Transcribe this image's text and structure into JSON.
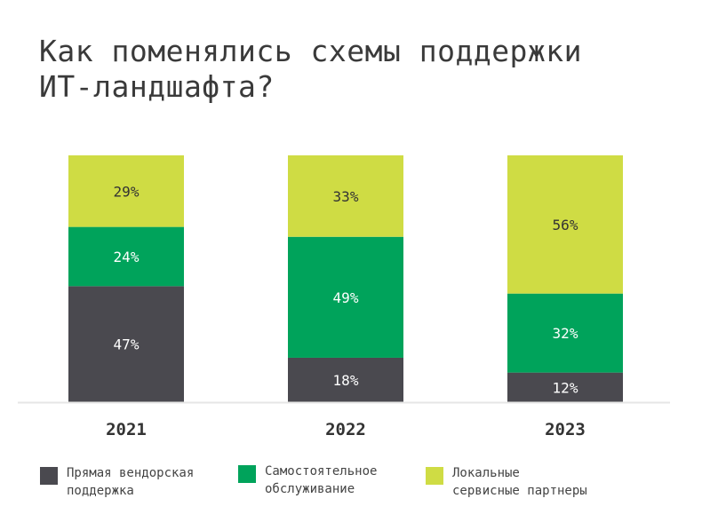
{
  "chart_data": {
    "type": "bar",
    "stacked": true,
    "title": "Как поменялись схемы поддержки ИТ-ландшафта?",
    "categories": [
      "2021",
      "2022",
      "2023"
    ],
    "series": [
      {
        "name": "Прямая вендорская поддержка",
        "color": "#4a494f",
        "values": [
          47,
          18,
          12
        ]
      },
      {
        "name": "Самостоятельное обслуживание",
        "color": "#00a35b",
        "values": [
          24,
          49,
          32
        ]
      },
      {
        "name": "Локальные сервисные партнеры",
        "color": "#cfdc44",
        "values": [
          29,
          33,
          56
        ]
      }
    ],
    "ylim": [
      0,
      100
    ],
    "unit": "%",
    "legend": "bottom"
  },
  "title_lines": [
    "Как поменялись схемы поддержки",
    "ИТ-ландшафта?"
  ],
  "legend_lines": [
    [
      "Прямая вендорская",
      "поддержка"
    ],
    [
      "Самостоятельное",
      "обслуживание"
    ],
    [
      "Локальные",
      "сервисные партнеры"
    ]
  ]
}
